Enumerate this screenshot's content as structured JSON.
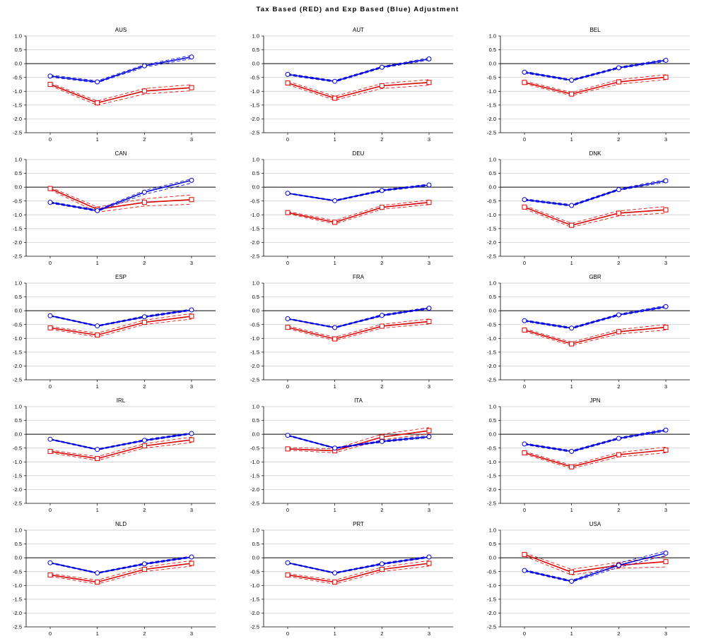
{
  "title": "Tax Based (RED) and Exp Based (Blue) Adjustment",
  "colors": {
    "tax": "#dd0000",
    "exp": "#0000dd",
    "grid": "#c8c8c8",
    "zero": "#000000",
    "axis": "#000000"
  },
  "chart_data": [
    {
      "type": "line",
      "title": "AUS",
      "x": [
        0,
        1,
        2,
        3
      ],
      "ylim": [
        -2.5,
        1.0
      ],
      "yticks": [
        1.0,
        0.5,
        0.0,
        -0.5,
        -1.0,
        -1.5,
        -2.0,
        -2.5
      ],
      "grid": true,
      "series": [
        {
          "key": "tax",
          "values": [
            -0.75,
            -1.42,
            -0.99,
            -0.87
          ],
          "lower": [
            -0.8,
            -1.5,
            -1.1,
            -0.98
          ],
          "upper": [
            -0.7,
            -1.35,
            -0.9,
            -0.76
          ]
        },
        {
          "key": "exp",
          "values": [
            -0.45,
            -0.66,
            -0.08,
            0.24
          ],
          "lower": [
            -0.49,
            -0.69,
            -0.13,
            0.18
          ],
          "upper": [
            -0.41,
            -0.62,
            -0.04,
            0.3
          ]
        }
      ]
    },
    {
      "type": "line",
      "title": "AUT",
      "x": [
        0,
        1,
        2,
        3
      ],
      "ylim": [
        -2.5,
        1.0
      ],
      "yticks": [
        1.0,
        0.5,
        0.0,
        -0.5,
        -1.0,
        -1.5,
        -2.0,
        -2.5
      ],
      "grid": true,
      "series": [
        {
          "key": "tax",
          "values": [
            -0.7,
            -1.25,
            -0.8,
            -0.68
          ],
          "lower": [
            -0.76,
            -1.32,
            -0.9,
            -0.78
          ],
          "upper": [
            -0.64,
            -1.18,
            -0.72,
            -0.58
          ]
        },
        {
          "key": "exp",
          "values": [
            -0.39,
            -0.64,
            -0.13,
            0.17
          ],
          "lower": [
            -0.42,
            -0.67,
            -0.16,
            0.13
          ],
          "upper": [
            -0.36,
            -0.61,
            -0.1,
            0.21
          ]
        }
      ]
    },
    {
      "type": "line",
      "title": "BEL",
      "x": [
        0,
        1,
        2,
        3
      ],
      "ylim": [
        -2.5,
        1.0
      ],
      "yticks": [
        1.0,
        0.5,
        0.0,
        -0.5,
        -1.0,
        -1.5,
        -2.0,
        -2.5
      ],
      "grid": true,
      "series": [
        {
          "key": "tax",
          "values": [
            -0.68,
            -1.1,
            -0.66,
            -0.49
          ],
          "lower": [
            -0.73,
            -1.16,
            -0.74,
            -0.58
          ],
          "upper": [
            -0.63,
            -1.04,
            -0.58,
            -0.4
          ]
        },
        {
          "key": "exp",
          "values": [
            -0.31,
            -0.6,
            -0.15,
            0.12
          ],
          "lower": [
            -0.34,
            -0.63,
            -0.18,
            0.08
          ],
          "upper": [
            -0.28,
            -0.57,
            -0.12,
            0.16
          ]
        }
      ]
    },
    {
      "type": "line",
      "title": "CAN",
      "x": [
        0,
        1,
        2,
        3
      ],
      "ylim": [
        -2.5,
        1.0
      ],
      "yticks": [
        1.0,
        0.5,
        0.0,
        -0.5,
        -1.0,
        -1.5,
        -2.0,
        -2.5
      ],
      "grid": true,
      "series": [
        {
          "key": "tax",
          "values": [
            -0.05,
            -0.8,
            -0.55,
            -0.45
          ],
          "lower": [
            -0.1,
            -0.9,
            -0.68,
            -0.62
          ],
          "upper": [
            0.0,
            -0.72,
            -0.42,
            -0.28
          ]
        },
        {
          "key": "exp",
          "values": [
            -0.55,
            -0.85,
            -0.18,
            0.25
          ],
          "lower": [
            -0.58,
            -0.88,
            -0.26,
            0.15
          ],
          "upper": [
            -0.52,
            -0.82,
            -0.12,
            0.3
          ]
        }
      ]
    },
    {
      "type": "line",
      "title": "DEU",
      "x": [
        0,
        1,
        2,
        3
      ],
      "ylim": [
        -2.5,
        1.0
      ],
      "yticks": [
        1.0,
        0.5,
        0.0,
        -0.5,
        -1.0,
        -1.5,
        -2.0,
        -2.5
      ],
      "grid": true,
      "series": [
        {
          "key": "tax",
          "values": [
            -0.92,
            -1.27,
            -0.73,
            -0.55
          ],
          "lower": [
            -0.96,
            -1.33,
            -0.8,
            -0.63
          ],
          "upper": [
            -0.88,
            -1.21,
            -0.66,
            -0.47
          ]
        },
        {
          "key": "exp",
          "values": [
            -0.22,
            -0.49,
            -0.12,
            0.08
          ],
          "lower": [
            -0.24,
            -0.51,
            -0.15,
            0.05
          ],
          "upper": [
            -0.2,
            -0.47,
            -0.09,
            0.11
          ]
        }
      ]
    },
    {
      "type": "line",
      "title": "DNK",
      "x": [
        0,
        1,
        2,
        3
      ],
      "ylim": [
        -2.5,
        1.0
      ],
      "yticks": [
        1.0,
        0.5,
        0.0,
        -0.5,
        -1.0,
        -1.5,
        -2.0,
        -2.5
      ],
      "grid": true,
      "series": [
        {
          "key": "tax",
          "values": [
            -0.72,
            -1.38,
            -0.94,
            -0.82
          ],
          "lower": [
            -0.78,
            -1.45,
            -1.04,
            -0.94
          ],
          "upper": [
            -0.66,
            -1.31,
            -0.86,
            -0.7
          ]
        },
        {
          "key": "exp",
          "values": [
            -0.45,
            -0.66,
            -0.09,
            0.23
          ],
          "lower": [
            -0.48,
            -0.69,
            -0.12,
            0.18
          ],
          "upper": [
            -0.42,
            -0.63,
            -0.06,
            0.28
          ]
        }
      ]
    },
    {
      "type": "line",
      "title": "ESP",
      "x": [
        0,
        1,
        2,
        3
      ],
      "ylim": [
        -2.5,
        1.0
      ],
      "yticks": [
        1.0,
        0.5,
        0.0,
        -0.5,
        -1.0,
        -1.5,
        -2.0,
        -2.5
      ],
      "grid": true,
      "series": [
        {
          "key": "tax",
          "values": [
            -0.62,
            -0.88,
            -0.42,
            -0.2
          ],
          "lower": [
            -0.67,
            -0.95,
            -0.5,
            -0.3
          ],
          "upper": [
            -0.57,
            -0.81,
            -0.34,
            -0.1
          ]
        },
        {
          "key": "exp",
          "values": [
            -0.18,
            -0.55,
            -0.22,
            0.03
          ],
          "lower": [
            -0.2,
            -0.57,
            -0.25,
            0.0
          ],
          "upper": [
            -0.16,
            -0.53,
            -0.19,
            0.06
          ]
        }
      ]
    },
    {
      "type": "line",
      "title": "FRA",
      "x": [
        0,
        1,
        2,
        3
      ],
      "ylim": [
        -2.5,
        1.0
      ],
      "yticks": [
        1.0,
        0.5,
        0.0,
        -0.5,
        -1.0,
        -1.5,
        -2.0,
        -2.5
      ],
      "grid": true,
      "series": [
        {
          "key": "tax",
          "values": [
            -0.6,
            -1.02,
            -0.56,
            -0.39
          ],
          "lower": [
            -0.65,
            -1.08,
            -0.63,
            -0.48
          ],
          "upper": [
            -0.55,
            -0.96,
            -0.49,
            -0.3
          ]
        },
        {
          "key": "exp",
          "values": [
            -0.29,
            -0.61,
            -0.17,
            0.09
          ],
          "lower": [
            -0.31,
            -0.63,
            -0.2,
            0.06
          ],
          "upper": [
            -0.27,
            -0.59,
            -0.14,
            0.12
          ]
        }
      ]
    },
    {
      "type": "line",
      "title": "GBR",
      "x": [
        0,
        1,
        2,
        3
      ],
      "ylim": [
        -2.5,
        1.0
      ],
      "yticks": [
        1.0,
        0.5,
        0.0,
        -0.5,
        -1.0,
        -1.5,
        -2.0,
        -2.5
      ],
      "grid": true,
      "series": [
        {
          "key": "tax",
          "values": [
            -0.7,
            -1.2,
            -0.76,
            -0.6
          ],
          "lower": [
            -0.75,
            -1.26,
            -0.84,
            -0.7
          ],
          "upper": [
            -0.65,
            -1.14,
            -0.68,
            -0.5
          ]
        },
        {
          "key": "exp",
          "values": [
            -0.36,
            -0.63,
            -0.15,
            0.15
          ],
          "lower": [
            -0.39,
            -0.66,
            -0.18,
            0.11
          ],
          "upper": [
            -0.33,
            -0.6,
            -0.12,
            0.19
          ]
        }
      ]
    },
    {
      "type": "line",
      "title": "IRL",
      "x": [
        0,
        1,
        2,
        3
      ],
      "ylim": [
        -2.5,
        1.0
      ],
      "yticks": [
        1.0,
        0.5,
        0.0,
        -0.5,
        -1.0,
        -1.5,
        -2.0,
        -2.5
      ],
      "grid": true,
      "series": [
        {
          "key": "tax",
          "values": [
            -0.62,
            -0.88,
            -0.42,
            -0.2
          ],
          "lower": [
            -0.67,
            -0.95,
            -0.5,
            -0.3
          ],
          "upper": [
            -0.57,
            -0.81,
            -0.34,
            -0.1
          ]
        },
        {
          "key": "exp",
          "values": [
            -0.18,
            -0.55,
            -0.22,
            0.03
          ],
          "lower": [
            -0.2,
            -0.57,
            -0.25,
            0.0
          ],
          "upper": [
            -0.16,
            -0.53,
            -0.19,
            0.06
          ]
        }
      ]
    },
    {
      "type": "line",
      "title": "ITA",
      "x": [
        0,
        1,
        2,
        3
      ],
      "ylim": [
        -2.5,
        1.0
      ],
      "yticks": [
        1.0,
        0.5,
        0.0,
        -0.5,
        -1.0,
        -1.5,
        -2.0,
        -2.5
      ],
      "grid": true,
      "series": [
        {
          "key": "tax",
          "values": [
            -0.53,
            -0.6,
            -0.1,
            0.13
          ],
          "lower": [
            -0.58,
            -0.67,
            -0.2,
            0.02
          ],
          "upper": [
            -0.48,
            -0.53,
            0.0,
            0.24
          ]
        },
        {
          "key": "exp",
          "values": [
            -0.04,
            -0.5,
            -0.26,
            -0.09
          ],
          "lower": [
            -0.06,
            -0.52,
            -0.29,
            -0.13
          ],
          "upper": [
            -0.02,
            -0.48,
            -0.23,
            -0.05
          ]
        }
      ]
    },
    {
      "type": "line",
      "title": "JPN",
      "x": [
        0,
        1,
        2,
        3
      ],
      "ylim": [
        -2.5,
        1.0
      ],
      "yticks": [
        1.0,
        0.5,
        0.0,
        -0.5,
        -1.0,
        -1.5,
        -2.0,
        -2.5
      ],
      "grid": true,
      "series": [
        {
          "key": "tax",
          "values": [
            -0.67,
            -1.18,
            -0.74,
            -0.57
          ],
          "lower": [
            -0.72,
            -1.24,
            -0.82,
            -0.67
          ],
          "upper": [
            -0.62,
            -1.12,
            -0.66,
            -0.47
          ]
        },
        {
          "key": "exp",
          "values": [
            -0.35,
            -0.62,
            -0.15,
            0.15
          ],
          "lower": [
            -0.38,
            -0.65,
            -0.18,
            0.11
          ],
          "upper": [
            -0.32,
            -0.59,
            -0.12,
            0.19
          ]
        }
      ]
    },
    {
      "type": "line",
      "title": "NLD",
      "x": [
        0,
        1,
        2,
        3
      ],
      "ylim": [
        -2.5,
        1.0
      ],
      "yticks": [
        1.0,
        0.5,
        0.0,
        -0.5,
        -1.0,
        -1.5,
        -2.0,
        -2.5
      ],
      "grid": true,
      "series": [
        {
          "key": "tax",
          "values": [
            -0.62,
            -0.88,
            -0.42,
            -0.2
          ],
          "lower": [
            -0.67,
            -0.95,
            -0.5,
            -0.3
          ],
          "upper": [
            -0.57,
            -0.81,
            -0.34,
            -0.1
          ]
        },
        {
          "key": "exp",
          "values": [
            -0.18,
            -0.55,
            -0.22,
            0.03
          ],
          "lower": [
            -0.2,
            -0.57,
            -0.25,
            0.0
          ],
          "upper": [
            -0.16,
            -0.53,
            -0.19,
            0.06
          ]
        }
      ]
    },
    {
      "type": "line",
      "title": "PRT",
      "x": [
        0,
        1,
        2,
        3
      ],
      "ylim": [
        -2.5,
        1.0
      ],
      "yticks": [
        1.0,
        0.5,
        0.0,
        -0.5,
        -1.0,
        -1.5,
        -2.0,
        -2.5
      ],
      "grid": true,
      "series": [
        {
          "key": "tax",
          "values": [
            -0.62,
            -0.88,
            -0.42,
            -0.2
          ],
          "lower": [
            -0.67,
            -0.95,
            -0.5,
            -0.3
          ],
          "upper": [
            -0.57,
            -0.81,
            -0.34,
            -0.1
          ]
        },
        {
          "key": "exp",
          "values": [
            -0.18,
            -0.55,
            -0.22,
            0.03
          ],
          "lower": [
            -0.2,
            -0.57,
            -0.25,
            0.0
          ],
          "upper": [
            -0.16,
            -0.53,
            -0.19,
            0.06
          ]
        }
      ]
    },
    {
      "type": "line",
      "title": "USA",
      "x": [
        0,
        1,
        2,
        3
      ],
      "ylim": [
        -2.5,
        1.0
      ],
      "yticks": [
        1.0,
        0.5,
        0.0,
        -0.5,
        -1.0,
        -1.5,
        -2.0,
        -2.5
      ],
      "grid": true,
      "series": [
        {
          "key": "tax",
          "values": [
            0.12,
            -0.52,
            -0.27,
            -0.14
          ],
          "lower": [
            0.06,
            -0.62,
            -0.38,
            -0.33
          ],
          "upper": [
            0.18,
            -0.42,
            -0.16,
            0.05
          ]
        },
        {
          "key": "exp",
          "values": [
            -0.46,
            -0.85,
            -0.27,
            0.17
          ],
          "lower": [
            -0.49,
            -0.88,
            -0.35,
            0.08
          ],
          "upper": [
            -0.43,
            -0.82,
            -0.19,
            0.24
          ]
        }
      ]
    }
  ]
}
